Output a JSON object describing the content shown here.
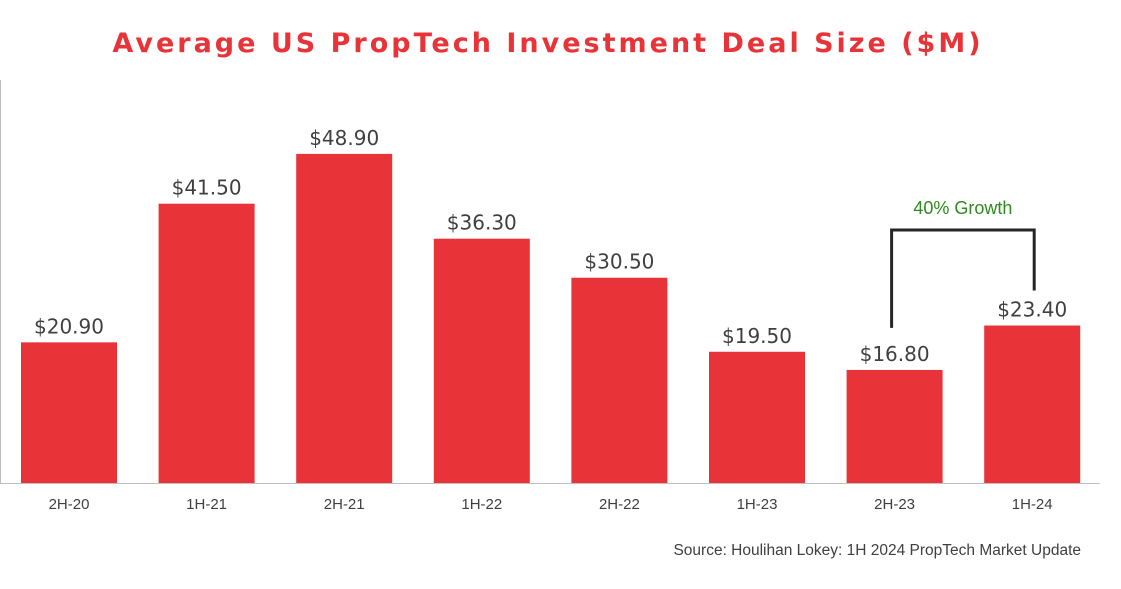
{
  "colors": {
    "bar": "#e83338",
    "title": "#e83338",
    "annotation_text": "#2e8b1f",
    "annotation_bracket": "#262626",
    "axis": "#bfbfbf"
  },
  "chart_data": {
    "type": "bar",
    "title": "Average US PropTech Investment Deal Size ($M)",
    "xlabel": "",
    "ylabel": "",
    "categories": [
      "2H-20",
      "1H-21",
      "2H-21",
      "1H-22",
      "2H-22",
      "1H-23",
      "2H-23",
      "1H-24"
    ],
    "values": [
      20.9,
      41.5,
      48.9,
      36.3,
      30.5,
      19.5,
      16.8,
      23.4
    ],
    "value_labels": [
      "$20.90",
      "$41.50",
      "$48.90",
      "$36.30",
      "$30.50",
      "$19.50",
      "$16.80",
      "$23.40"
    ],
    "ylim": [
      0,
      55
    ],
    "grid": false,
    "annotation": {
      "text": "40% Growth",
      "from_category": "2H-23",
      "to_category": "1H-24"
    },
    "source": "Source: Houlihan Lokey: 1H 2024 PropTech Market Update"
  }
}
